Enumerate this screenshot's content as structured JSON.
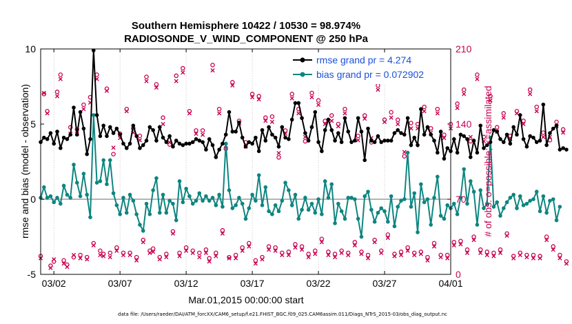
{
  "chart_data": {
    "type": "line",
    "title_line1": "Southern Hemisphere 10422 / 10530 = 98.974%",
    "title_line2": "RADIOSONDE_V_WIND_COMPONENT @ 250 hPa",
    "xlabel": "Mar.01,2015 00:00:00 start",
    "ylabel_left": "rmse and bias (model - observation)",
    "ylabel_right": "# of obs: o=possible; ×=assimilated",
    "x_range_days": [
      0,
      31
    ],
    "ylim_left": [
      -5,
      10
    ],
    "ylim_right": [
      0,
      210
    ],
    "x_tick_days": [
      1,
      6,
      11,
      16,
      21,
      26,
      31
    ],
    "x_tick_labels": [
      "03/02",
      "03/07",
      "03/12",
      "03/17",
      "03/22",
      "03/27",
      "04/01"
    ],
    "y_ticks_left": [
      -5,
      0,
      5,
      10
    ],
    "y_ticks_left_labels": [
      "-5",
      "0",
      "5",
      "10"
    ],
    "y_ticks_right": [
      0,
      70,
      140,
      210
    ],
    "y_ticks_right_labels": [
      "0",
      "70",
      "140",
      "210"
    ],
    "legend_position": "top-right",
    "time_step_days": 0.25,
    "series": [
      {
        "name": "rmse grand pr = 4.274",
        "color": "#000000",
        "axis": "left",
        "values": [
          3.8,
          4.1,
          4.0,
          4.4,
          3.7,
          4.5,
          3.4,
          4.1,
          4.0,
          4.3,
          6.1,
          4.3,
          5.8,
          4.7,
          3.0,
          4.0,
          9.9,
          5.6,
          4.2,
          4.9,
          4.2,
          4.8,
          4.4,
          4.7,
          4.3,
          3.7,
          3.4,
          3.7,
          4.9,
          4.2,
          3.4,
          3.6,
          3.9,
          4.8,
          4.6,
          3.9,
          4.8,
          4.1,
          3.8,
          4.2,
          3.5,
          3.9,
          3.7,
          3.6,
          3.7,
          3.7,
          3.8,
          4.0,
          3.9,
          3.8,
          3.3,
          4.0,
          3.6,
          2.8,
          3.3,
          3.7,
          4.3,
          5.8,
          4.5,
          4.5,
          5.1,
          4.1,
          3.5,
          3.8,
          3.7,
          4.1,
          3.2,
          4.6,
          3.9,
          4.8,
          4.3,
          4.1,
          3.5,
          4.8,
          4.1,
          4.0,
          5.3,
          6.4,
          6.4,
          5.4,
          4.4,
          3.9,
          4.8,
          5.8,
          3.8,
          3.2,
          4.6,
          5.3,
          4.6,
          3.9,
          4.4,
          3.8,
          5.4,
          4.5,
          3.8,
          3.9,
          5.4,
          4.5,
          2.6,
          4.7,
          3.9,
          3.8,
          4.2,
          3.8,
          3.9,
          3.9,
          3.9,
          4.4,
          4.6,
          4.4,
          4.3,
          5.4,
          3.6,
          4.1,
          3.6,
          6.0,
          4.3,
          4.8,
          4.3,
          3.9,
          3.1,
          4.5,
          2.7,
          3.4,
          3.2,
          4.0,
          3.1,
          4.3,
          4.2,
          4.0,
          2.8,
          3.9,
          3.1,
          4.9,
          3.4,
          3.6,
          3.8,
          4.6,
          4.5,
          4.0,
          3.8,
          4.3,
          3.7,
          4.8,
          4.3,
          5.6,
          4.0,
          3.5,
          4.2,
          4.1,
          3.8,
          3.9,
          6.3,
          3.6,
          4.4,
          4.7,
          4.9,
          3.3,
          3.4,
          3.3
        ]
      },
      {
        "name": "bias grand pr = 0.072902",
        "color": "#0d8580",
        "axis": "left",
        "values": [
          0.1,
          0.8,
          0.1,
          0.2,
          -0.2,
          0.1,
          -0.3,
          0.9,
          0.3,
          0.1,
          2.3,
          1.1,
          0.2,
          1.7,
          0.3,
          -1.2,
          5.6,
          1.1,
          1.2,
          2.6,
          1.0,
          2.6,
          0.4,
          -0.4,
          -1.0,
          0.1,
          -0.9,
          0.3,
          -0.1,
          -1.0,
          -1.7,
          -2.1,
          -0.3,
          -1.0,
          0.6,
          1.4,
          -0.9,
          0.3,
          -0.9,
          -0.1,
          -0.3,
          -1.4,
          1.2,
          -0.2,
          0.7,
          0.2,
          -0.3,
          -0.1,
          0.4,
          -0.1,
          0.2,
          -0.1,
          0.1,
          -0.4,
          0.3,
          -0.5,
          3.7,
          0.6,
          -0.6,
          -0.4,
          0.1,
          -0.3,
          -1.3,
          -0.6,
          0.3,
          -0.1,
          1.6,
          -0.4,
          0.8,
          -0.8,
          -1.0,
          -0.4,
          -0.8,
          -0.1,
          1.1,
          0.6,
          -0.4,
          0.3,
          -1.3,
          -0.7,
          0.1,
          -0.7,
          -0.3,
          -0.9,
          0.0,
          -1.0,
          1.2,
          0.1,
          1.0,
          -1.6,
          -0.3,
          -0.8,
          -1.3,
          0.1,
          0.1,
          0.0,
          -1.3,
          -2.5,
          0.2,
          0.5,
          -0.7,
          -1.5,
          -0.9,
          -0.6,
          -0.8,
          -1.5,
          0.2,
          -1.8,
          -0.5,
          -0.1,
          0.0,
          3.1,
          -0.5,
          0.4,
          -2.2,
          1.0,
          -0.2,
          0.0,
          -1.7,
          0.1,
          1.5,
          -1.1,
          -1.3,
          -0.4,
          -0.6,
          -0.3,
          -1.0,
          0.1,
          2.0,
          -0.3,
          1.2,
          0.5,
          -1.7,
          0.6,
          -0.6,
          -0.3,
          4.1,
          -0.5,
          -0.2,
          -1.1,
          -0.6,
          -0.2,
          0.1,
          0.3,
          -0.6,
          0.2,
          -0.4,
          -0.3,
          -0.1,
          0.0,
          0.5,
          -0.8,
          0.2,
          -0.9,
          -0.1,
          0.0,
          -1.4,
          -0.5
        ]
      },
      {
        "name": "possible",
        "marker": "o",
        "color": "#c8004f",
        "axis": "right",
        "values": [
          17,
          168,
          152,
          8,
          12,
          170,
          186,
          13,
          9,
          137,
          16,
          135,
          18,
          158,
          16,
          165,
          29,
          186,
          22,
          19,
          173,
          20,
          112,
          25,
          131,
          20,
          154,
          20,
          136,
          16,
          129,
          32,
          184,
          22,
          24,
          177,
          16,
          146,
          19,
          121,
          40,
          185,
          20,
          192,
          25,
          152,
          22,
          134,
          20,
          134,
          23,
          15,
          195,
          20,
          154,
          41,
          117,
          16,
          179,
          18,
          143,
          25,
          123,
          29,
          168,
          13,
          166,
          16,
          146,
          26,
          147,
          25,
          109,
          20,
          134,
          21,
          168,
          28,
          154,
          26,
          124,
          19,
          169,
          22,
          162,
          33,
          143,
          21,
          148,
          19,
          140,
          22,
          154,
          20,
          187,
          30,
          129,
          21,
          148,
          18,
          123,
          32,
          176,
          22,
          144,
          37,
          151,
          19,
          144,
          21,
          110,
          25,
          141,
          20,
          140,
          21,
          156,
          16,
          136,
          29,
          154,
          18,
          130,
          18,
          140,
          30,
          159,
          31,
          172,
          23,
          124,
          35,
          186,
          23,
          128,
          21,
          166,
          20,
          137,
          23,
          150,
          38,
          129,
          17,
          152,
          20,
          143,
          18,
          172,
          18,
          156,
          17,
          132,
          35,
          125,
          26,
          142,
          18,
          135,
          12
        ]
      },
      {
        "name": "assimilated",
        "marker": "x",
        "color": "#c8004f",
        "axis": "right",
        "values": [
          15,
          169,
          150,
          6,
          14,
          166,
          182,
          10,
          7,
          131,
          18,
          131,
          15,
          154,
          14,
          160,
          27,
          182,
          18,
          17,
          171,
          16,
          118,
          22,
          127,
          18,
          152,
          18,
          132,
          13,
          125,
          30,
          180,
          20,
          21,
          174,
          14,
          140,
          16,
          123,
          38,
          180,
          17,
          188,
          22,
          150,
          20,
          131,
          16,
          130,
          20,
          12,
          190,
          17,
          150,
          38,
          120,
          15,
          176,
          15,
          141,
          22,
          119,
          26,
          165,
          10,
          163,
          14,
          143,
          23,
          142,
          22,
          113,
          18,
          131,
          18,
          164,
          25,
          150,
          23,
          128,
          16,
          165,
          19,
          158,
          30,
          140,
          18,
          143,
          16,
          138,
          20,
          150,
          18,
          182,
          27,
          125,
          19,
          145,
          15,
          127,
          30,
          172,
          20,
          142,
          34,
          146,
          17,
          140,
          18,
          114,
          22,
          136,
          18,
          136,
          19,
          152,
          13,
          132,
          26,
          150,
          16,
          127,
          15,
          136,
          27,
          155,
          28,
          168,
          20,
          128,
          32,
          182,
          20,
          124,
          18,
          162,
          17,
          133,
          20,
          146,
          36,
          126,
          15,
          150,
          18,
          140,
          16,
          168,
          15,
          152,
          15,
          128,
          32,
          128,
          23,
          138,
          15,
          132,
          10
        ]
      }
    ],
    "legend": [
      {
        "label": "rmse grand pr = 4.274",
        "color": "#000000"
      },
      {
        "label": "bias grand pr = 0.072902",
        "color": "#0d8580"
      }
    ],
    "footnote": "data file: /Users/raeder/DAI/ATM_forcXX/CAM6_setup/f.e21.FHIST_BGC.f09_025.CAM6assim.011/Diags_NTrS_2015-03/obs_diag_output.nc"
  }
}
